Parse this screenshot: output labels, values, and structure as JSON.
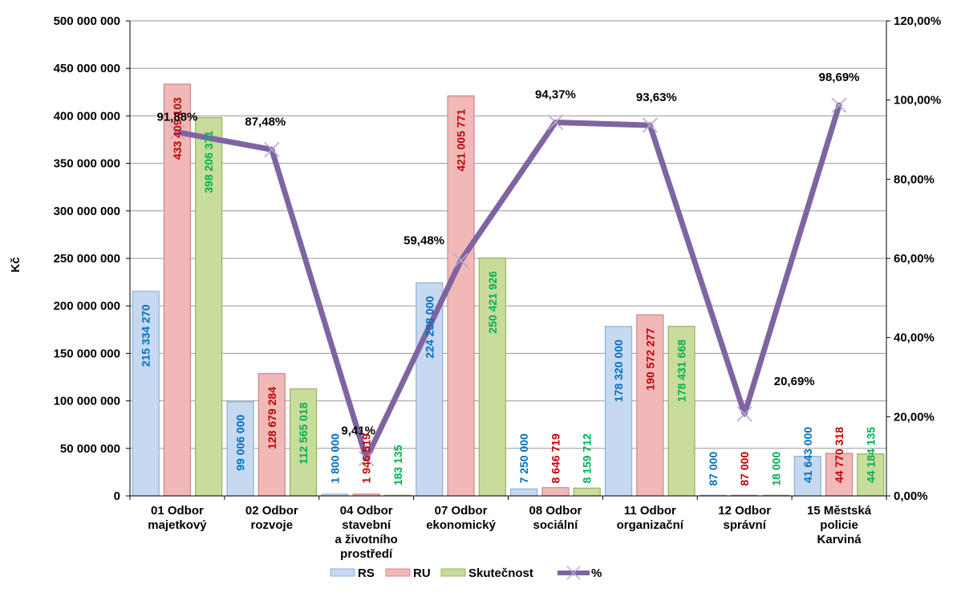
{
  "chart_data": {
    "type": "bar",
    "categories": [
      [
        "01 Odbor",
        "majetkový"
      ],
      [
        "02 Odbor",
        "rozvoje"
      ],
      [
        "04 Odbor",
        "stavební",
        "a životního",
        "prostředí"
      ],
      [
        "07 Odbor",
        "ekonomický"
      ],
      [
        "08 Odbor",
        "sociální"
      ],
      [
        "11 Odbor",
        "organizační"
      ],
      [
        "12 Odbor",
        "správní"
      ],
      [
        "15 Městská",
        "policie",
        "Karviná"
      ]
    ],
    "series": [
      {
        "name": "RS",
        "values": [
          215334270,
          99006000,
          1800000,
          224258000,
          7250000,
          178320000,
          87000,
          41643000
        ],
        "labels": [
          "215 334 270",
          "99 006 000",
          "1 800 000",
          "224 258 000",
          "7 250 000",
          "178 320 000",
          "87 000",
          "41 643 000"
        ]
      },
      {
        "name": "RU",
        "values": [
          433409103,
          128679284,
          1946519,
          421005771,
          8646719,
          190572277,
          87000,
          44770318
        ],
        "labels": [
          "433 409 103",
          "128 679 284",
          "1 946 519",
          "421 005 771",
          "8 646 719",
          "190 572 277",
          "87 000",
          "44 770 318"
        ]
      },
      {
        "name": "Skutečnost",
        "values": [
          398206371,
          112565018,
          183135,
          250421926,
          8159712,
          178431668,
          18000,
          44184135
        ],
        "labels": [
          "398 206 371",
          "112 565 018",
          "183 135",
          "250 421 926",
          "8 159 712",
          "178 431 668",
          "18 000",
          "44 184 135"
        ]
      }
    ],
    "line_series": {
      "name": "%",
      "values": [
        91.88,
        87.48,
        9.41,
        59.48,
        94.37,
        93.63,
        20.69,
        98.69
      ],
      "labels": [
        "91,88%",
        "87,48%",
        "9,41%",
        "59,48%",
        "94,37%",
        "93,63%",
        "20,69%",
        "98,69%"
      ]
    },
    "ylabel": "Kč",
    "ylim": [
      0,
      500000000
    ],
    "y_ticks": [
      "0",
      "50 000 000",
      "100 000 000",
      "150 000 000",
      "200 000 000",
      "250 000 000",
      "300 000 000",
      "350 000 000",
      "400 000 000",
      "450 000 000",
      "500 000 000"
    ],
    "y2lim": [
      0,
      120
    ],
    "y2_ticks": [
      "0,00%",
      "20,00%",
      "40,00%",
      "60,00%",
      "80,00%",
      "100,00%",
      "120,00%"
    ],
    "grid": true,
    "legend_position": "bottom",
    "colors": {
      "RS_fill": "#c6d9f1",
      "RS_stroke": "#8eb0d8",
      "RS_label": "#0070c0",
      "RU_fill": "#f2b8b8",
      "RU_stroke": "#c98a8a",
      "RU_label": "#c00000",
      "Skutecnost_fill": "#c8dc9c",
      "Skutecnost_stroke": "#98b25c",
      "Skutecnost_label": "#00b050",
      "line": "#8064a2",
      "grid": "#999999"
    }
  }
}
